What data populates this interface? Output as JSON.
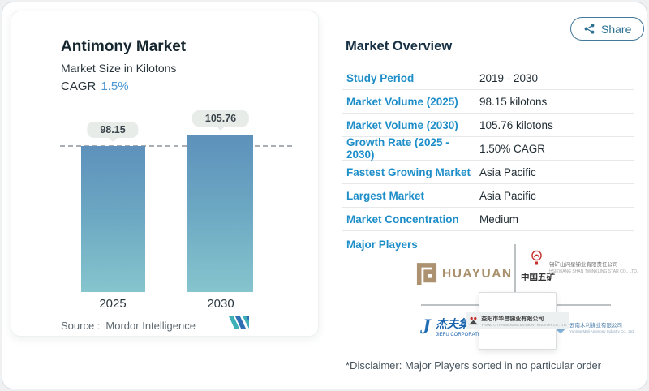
{
  "page": {
    "share_label": "Share"
  },
  "chart_card": {
    "title": "Antimony Market",
    "subtitle": "Market Size in Kilotons",
    "cagr_label": "CAGR",
    "cagr_value": "1.5%",
    "source_label": "Source :",
    "source_value": "Mordor Intelligence"
  },
  "chart_data": {
    "type": "bar",
    "title": "Antimony Market",
    "subtitle": "Market Size in Kilotons",
    "ylabel": "Kilotons",
    "categories": [
      "2025",
      "2030"
    ],
    "values": [
      98.15,
      105.76
    ],
    "data_labels": [
      "98.15",
      "105.76"
    ],
    "threshold_line": 98.15,
    "cagr": "1.5%",
    "grid": false,
    "bar_color_gradient": [
      "#5d91bb",
      "#85c5cd"
    ],
    "source": "Mordor Intelligence"
  },
  "overview": {
    "title": "Market Overview",
    "rows": [
      {
        "label": "Study Period",
        "value": "2019 - 2030"
      },
      {
        "label": "Market Volume (2025)",
        "value": "98.15 kilotons"
      },
      {
        "label": "Market Volume (2030)",
        "value": "105.76 kilotons"
      },
      {
        "label": "Growth Rate (2025 - 2030)",
        "value": "1.50% CAGR"
      },
      {
        "label": "Fastest Growing Market",
        "value": "Asia Pacific"
      },
      {
        "label": "Largest Market",
        "value": "Asia Pacific"
      },
      {
        "label": "Market Concentration",
        "value": "Medium"
      }
    ],
    "major_players_label": "Major Players",
    "players": {
      "huayuan": {
        "wordmark": "HUAYUAN"
      },
      "twinkling_star": {
        "brand_cn": "中国五矿",
        "name_cn": "锡矿山闪星锑业有限责任公司",
        "name_en": "HSIKWANG SHAN TWINKLING STAR CO., LTD."
      },
      "jiefu": {
        "glyph": "J",
        "name_cn": "杰夫集团",
        "name_en": "JIEFU CORPORATION"
      },
      "huachang": {
        "name_cn": "益阳市华昌锑业有限公司",
        "name_en": "YIYANG CITY HUACHANG ANTIMONY INDUSTRY CO., LTD."
      },
      "muli": {
        "name_cn": "云南木利锑业有限公司",
        "name_en": "Yunnan Muli Antimony Industry Co., Ltd."
      }
    },
    "disclaimer": "*Disclaimer: Major Players sorted in no particular order",
    "accent_color": "#1e8ec9",
    "heading_color": "#173043"
  }
}
